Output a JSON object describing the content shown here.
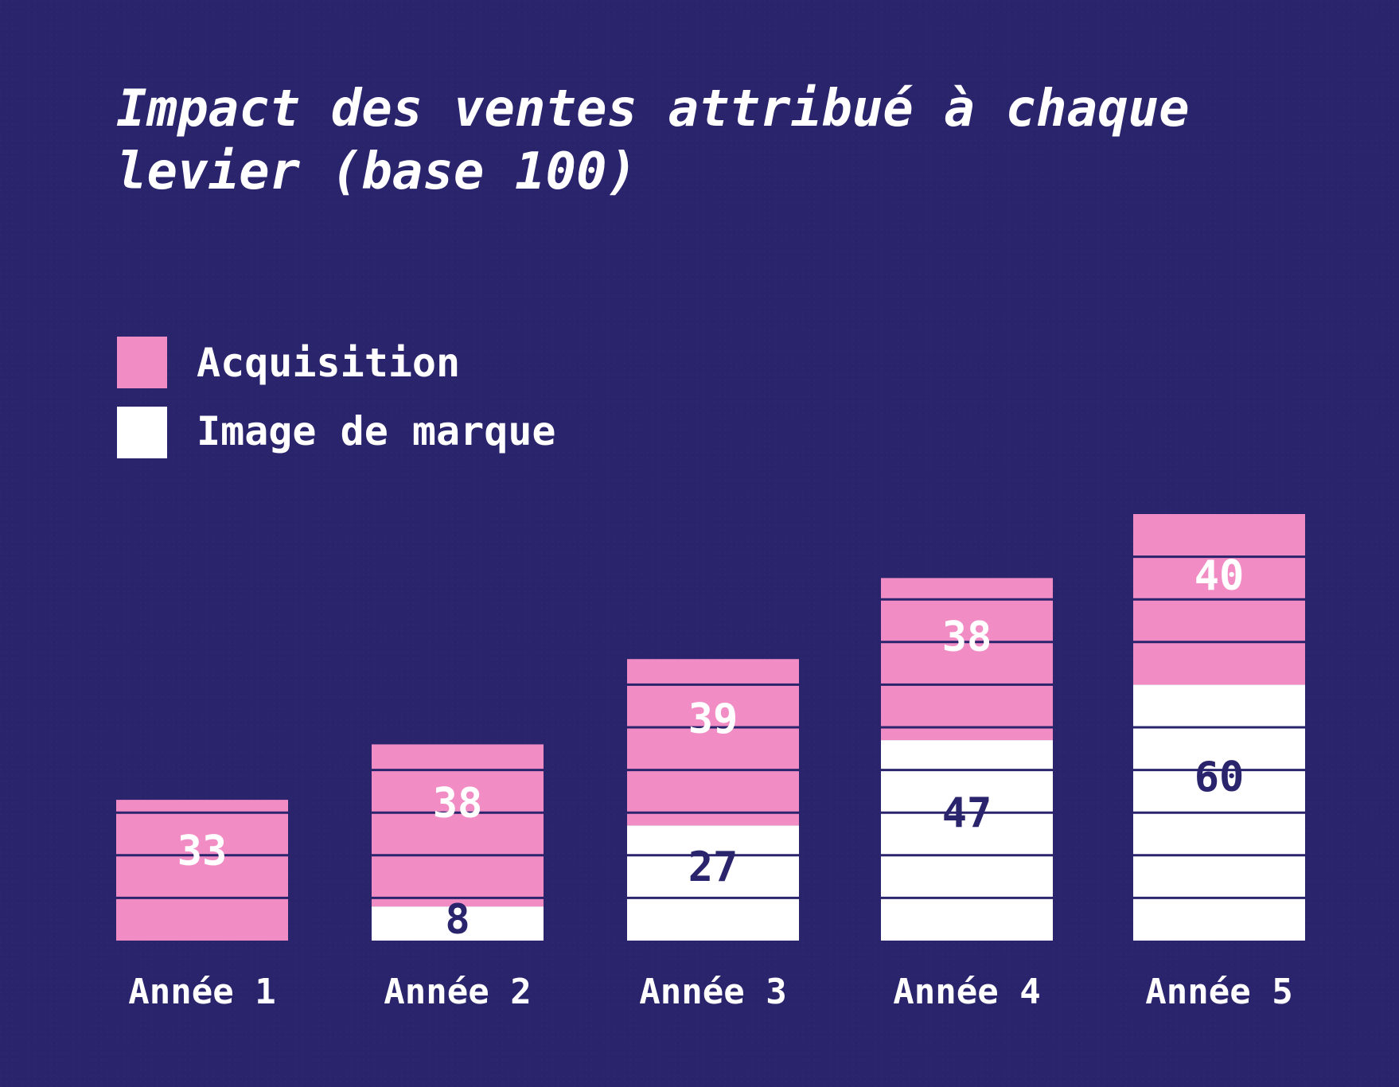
{
  "chart_data": {
    "type": "bar",
    "stacked": true,
    "title": "Impact des ventes attribué à chaque levier (base 100)",
    "title_lines": [
      "Impact des ventes attribué à chaque",
      "levier (base 100)"
    ],
    "categories": [
      "Année 1",
      "Année 2",
      "Année 3",
      "Année 4",
      "Année 5"
    ],
    "series": [
      {
        "name": "Image de marque",
        "values": [
          0,
          8,
          27,
          47,
          60
        ],
        "color": "#ffffff",
        "label_color": "#2a246d"
      },
      {
        "name": "Acquisition",
        "values": [
          33,
          38,
          39,
          38,
          40
        ],
        "color": "#f28cc4",
        "label_color": "#ffffff"
      }
    ],
    "legend": {
      "position": "top-left",
      "order": [
        "Acquisition",
        "Image de marque"
      ]
    },
    "grid": false,
    "ylim": [
      0,
      100
    ],
    "segment_step": 10
  },
  "colors": {
    "background": "#2a246d",
    "acquisition": "#f28cc4",
    "brand_image": "#ffffff",
    "divider": "#2a246d",
    "text_light": "#ffffff",
    "text_dark": "#2a246d"
  }
}
